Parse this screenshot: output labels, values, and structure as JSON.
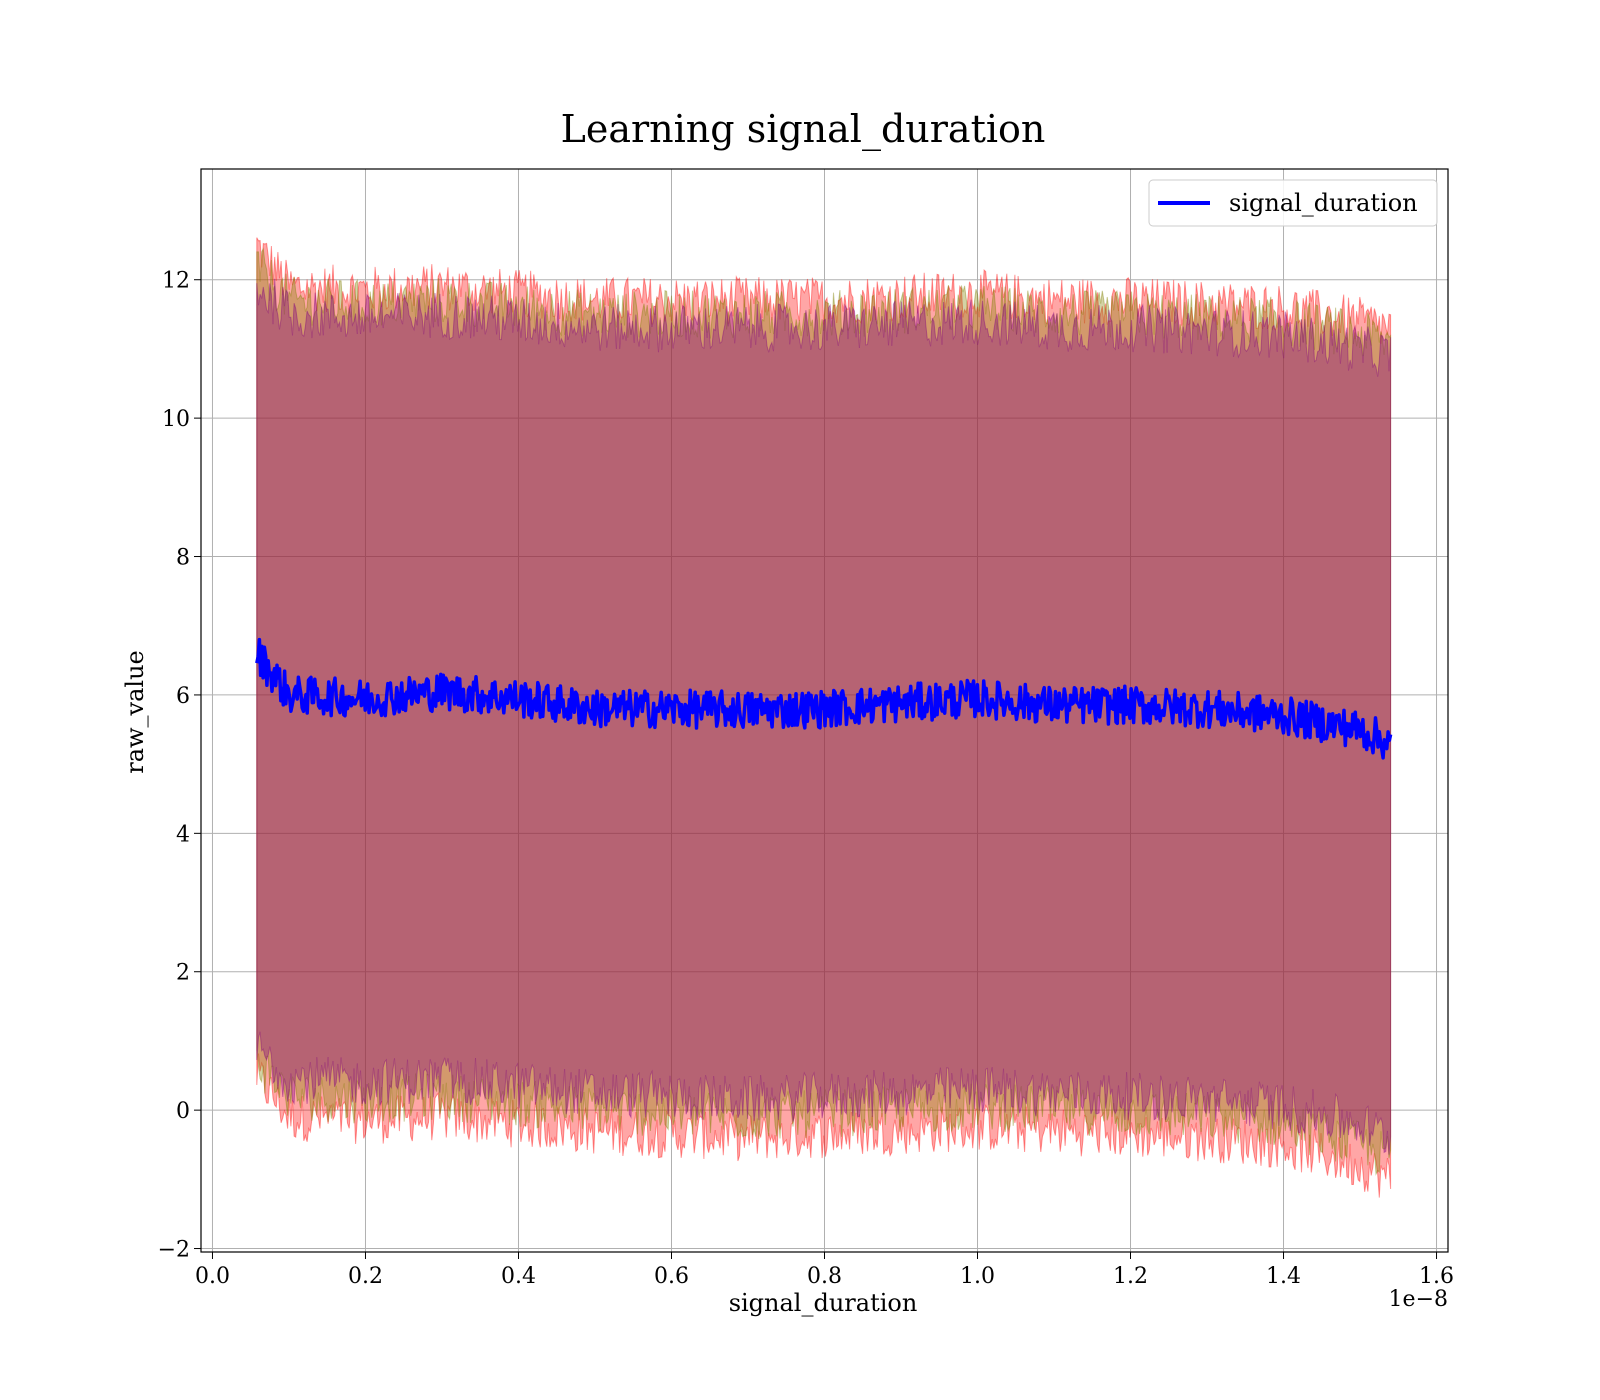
{
  "chart_data": {
    "type": "line",
    "title": "Learning signal_duration",
    "xlabel": "signal_duration",
    "ylabel": "raw_value",
    "x_offset_label": "1e−8",
    "x_scale": 1e-08,
    "xlim": [
      -0.015,
      1.615
    ],
    "ylim": [
      -2.05,
      13.6
    ],
    "x_ticks": [
      0.0,
      0.2,
      0.4,
      0.6,
      0.8,
      1.0,
      1.2,
      1.4,
      1.6
    ],
    "x_tick_labels": [
      "0.0",
      "0.2",
      "0.4",
      "0.6",
      "0.8",
      "1.0",
      "1.2",
      "1.4",
      "1.6"
    ],
    "y_ticks": [
      -2,
      0,
      2,
      4,
      6,
      8,
      10,
      12
    ],
    "y_tick_labels": [
      "−2",
      "0",
      "2",
      "4",
      "6",
      "8",
      "10",
      "12"
    ],
    "grid": true,
    "legend": {
      "position": "upper right",
      "entries": [
        {
          "label": "signal_duration",
          "color": "#0000ff"
        }
      ]
    },
    "x_range": [
      0.058,
      1.54
    ],
    "series": [
      {
        "name": "signal_duration",
        "color": "#0000ff",
        "x": [
          0.058,
          0.1,
          0.2,
          0.3,
          0.4,
          0.5,
          0.6,
          0.7,
          0.8,
          0.9,
          1.0,
          1.1,
          1.2,
          1.3,
          1.4,
          1.5,
          1.54
        ],
        "y": [
          6.6,
          6.0,
          5.95,
          6.05,
          5.95,
          5.8,
          5.8,
          5.78,
          5.8,
          5.88,
          5.95,
          5.85,
          5.85,
          5.8,
          5.7,
          5.5,
          5.3
        ]
      }
    ],
    "bands": [
      {
        "color": "#ff0000",
        "x": [
          0.058,
          0.1,
          0.2,
          0.3,
          0.4,
          0.5,
          0.6,
          0.7,
          0.8,
          0.9,
          1.0,
          1.1,
          1.2,
          1.3,
          1.4,
          1.5,
          1.54
        ],
        "upper": [
          12.5,
          11.9,
          11.85,
          11.9,
          11.8,
          11.7,
          11.7,
          11.7,
          11.7,
          11.75,
          11.8,
          11.7,
          11.7,
          11.65,
          11.6,
          11.4,
          11.3
        ],
        "lower": [
          0.5,
          -0.1,
          -0.15,
          -0.1,
          -0.2,
          -0.3,
          -0.35,
          -0.4,
          -0.35,
          -0.3,
          -0.25,
          -0.3,
          -0.35,
          -0.4,
          -0.5,
          -0.8,
          -1.0
        ]
      },
      {
        "color": "#808000",
        "x": [
          0.058,
          0.1,
          0.2,
          0.3,
          0.4,
          0.5,
          0.6,
          0.7,
          0.8,
          0.9,
          1.0,
          1.1,
          1.2,
          1.3,
          1.4,
          1.5,
          1.54
        ],
        "upper": [
          12.2,
          11.7,
          11.65,
          11.7,
          11.6,
          11.5,
          11.5,
          11.5,
          11.5,
          11.55,
          11.6,
          11.5,
          11.5,
          11.45,
          11.4,
          11.2,
          11.1
        ],
        "lower": [
          0.7,
          0.2,
          0.15,
          0.2,
          0.1,
          0.0,
          -0.05,
          -0.1,
          -0.05,
          0.0,
          0.05,
          0.0,
          -0.05,
          -0.1,
          -0.2,
          -0.5,
          -0.7
        ]
      },
      {
        "color": "#800080",
        "x": [
          0.058,
          0.1,
          0.2,
          0.3,
          0.4,
          0.5,
          0.6,
          0.7,
          0.8,
          0.9,
          1.0,
          1.1,
          1.2,
          1.3,
          1.4,
          1.5,
          1.54
        ],
        "upper": [
          11.9,
          11.5,
          11.45,
          11.5,
          11.4,
          11.3,
          11.3,
          11.3,
          11.3,
          11.35,
          11.4,
          11.3,
          11.3,
          11.25,
          11.2,
          11.0,
          10.9
        ],
        "lower": [
          0.9,
          0.45,
          0.4,
          0.45,
          0.35,
          0.25,
          0.2,
          0.15,
          0.2,
          0.25,
          0.3,
          0.25,
          0.2,
          0.15,
          0.05,
          -0.2,
          -0.4
        ]
      }
    ]
  }
}
